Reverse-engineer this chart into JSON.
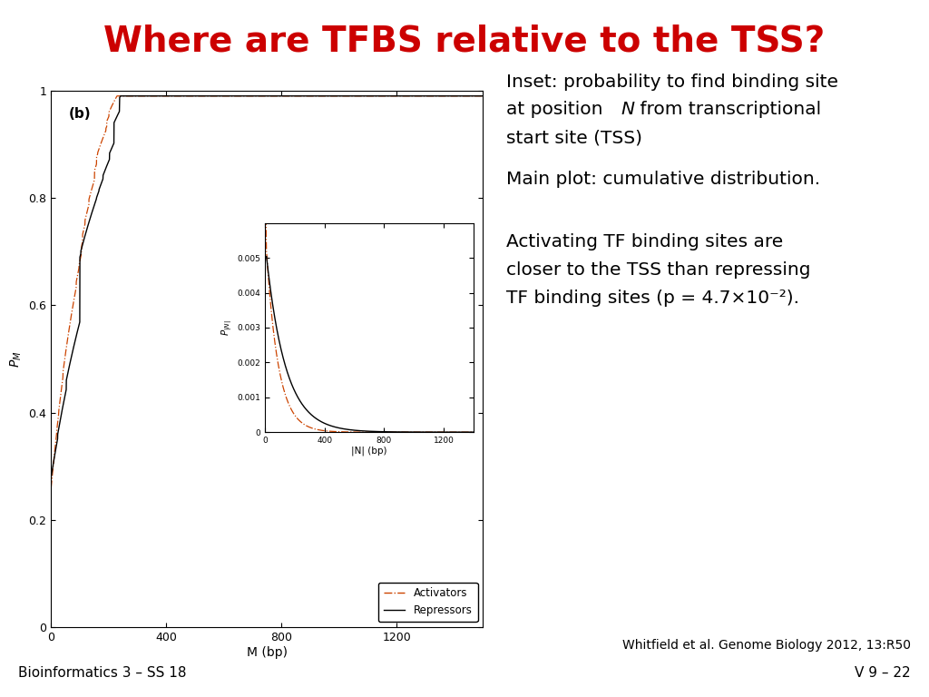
{
  "title": "Where are TFBS relative to the TSS?",
  "title_color": "#cc0000",
  "title_fontsize": 28,
  "background_color": "#ffffff",
  "inset_text_line1": "Inset: probability to find binding site",
  "inset_text_line2": "at position N from transcriptional",
  "inset_text_line3": "start site (TSS)",
  "main_text": "Main plot: cumulative distribution.",
  "activating_text_line1": "Activating TF binding sites are",
  "activating_text_line2": "closer to the TSS than repressing",
  "activating_text_line3": "TF binding sites (p = 4.7×10-2).",
  "footer_left": "Bioinformatics 3 – SS 18",
  "footer_right": "V 9 – 22",
  "reference": "Whitfield et al. Genome Biology 2012, 13:R50",
  "plot_label": "(b)",
  "main_xlabel": "M (bp)",
  "main_ylabel": "P_M",
  "inset_xlabel": "|N| (bp)",
  "activator_color": "#cc4400",
  "repressor_color": "#000000",
  "legend_activators": "Activators",
  "legend_repressors": "Repressors",
  "fig_width": 10.24,
  "fig_height": 7.68,
  "fig_dpi": 100
}
